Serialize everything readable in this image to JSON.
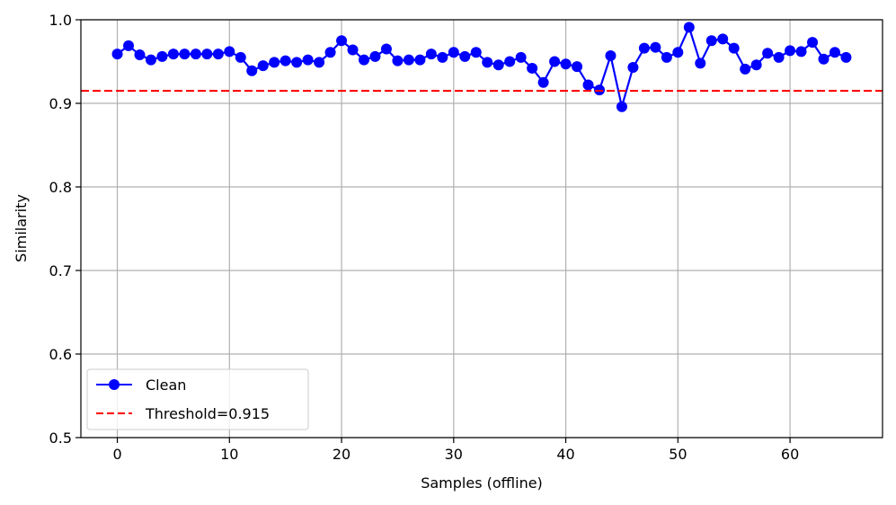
{
  "chart_data": {
    "type": "line",
    "title": "",
    "xlabel": "Samples (offline)",
    "ylabel": "Similarity",
    "xlim": [
      -3.25,
      68.25
    ],
    "ylim": [
      0.5,
      1.0
    ],
    "x_ticks": [
      0,
      10,
      20,
      30,
      40,
      50,
      60
    ],
    "x_tick_labels": [
      "0",
      "10",
      "20",
      "30",
      "40",
      "50",
      "60"
    ],
    "y_ticks": [
      0.5,
      0.6,
      0.7,
      0.8,
      0.9,
      1.0
    ],
    "y_tick_labels": [
      "0.5",
      "0.6",
      "0.7",
      "0.8",
      "0.9",
      "1.0"
    ],
    "grid": true,
    "legend_position": "lower-left",
    "series": [
      {
        "name": "Clean",
        "color": "#0000ff",
        "style": "line-with-circle-markers",
        "x": [
          0,
          1,
          2,
          3,
          4,
          5,
          6,
          7,
          8,
          9,
          10,
          11,
          12,
          13,
          14,
          15,
          16,
          17,
          18,
          19,
          20,
          21,
          22,
          23,
          24,
          25,
          26,
          27,
          28,
          29,
          30,
          31,
          32,
          33,
          34,
          35,
          36,
          37,
          38,
          39,
          40,
          41,
          42,
          43,
          44,
          45,
          46,
          47,
          48,
          49,
          50,
          51,
          52,
          53,
          54,
          55,
          56,
          57,
          58,
          59,
          60,
          61,
          62,
          63,
          64,
          65
        ],
        "y": [
          0.959,
          0.969,
          0.958,
          0.952,
          0.956,
          0.959,
          0.959,
          0.959,
          0.959,
          0.959,
          0.962,
          0.955,
          0.939,
          0.945,
          0.949,
          0.951,
          0.949,
          0.952,
          0.949,
          0.961,
          0.975,
          0.964,
          0.952,
          0.956,
          0.965,
          0.951,
          0.952,
          0.952,
          0.959,
          0.955,
          0.961,
          0.956,
          0.961,
          0.949,
          0.946,
          0.95,
          0.955,
          0.942,
          0.925,
          0.95,
          0.947,
          0.944,
          0.922,
          0.916,
          0.957,
          0.896,
          0.943,
          0.966,
          0.967,
          0.955,
          0.961,
          0.991,
          0.948,
          0.975,
          0.977,
          0.966,
          0.941,
          0.946,
          0.96,
          0.955,
          0.963,
          0.962,
          0.973,
          0.953,
          0.961,
          0.955
        ]
      },
      {
        "name": "Threshold=0.915",
        "color": "#ff0000",
        "style": "dashed-horizontal-line",
        "value": 0.915
      }
    ]
  }
}
